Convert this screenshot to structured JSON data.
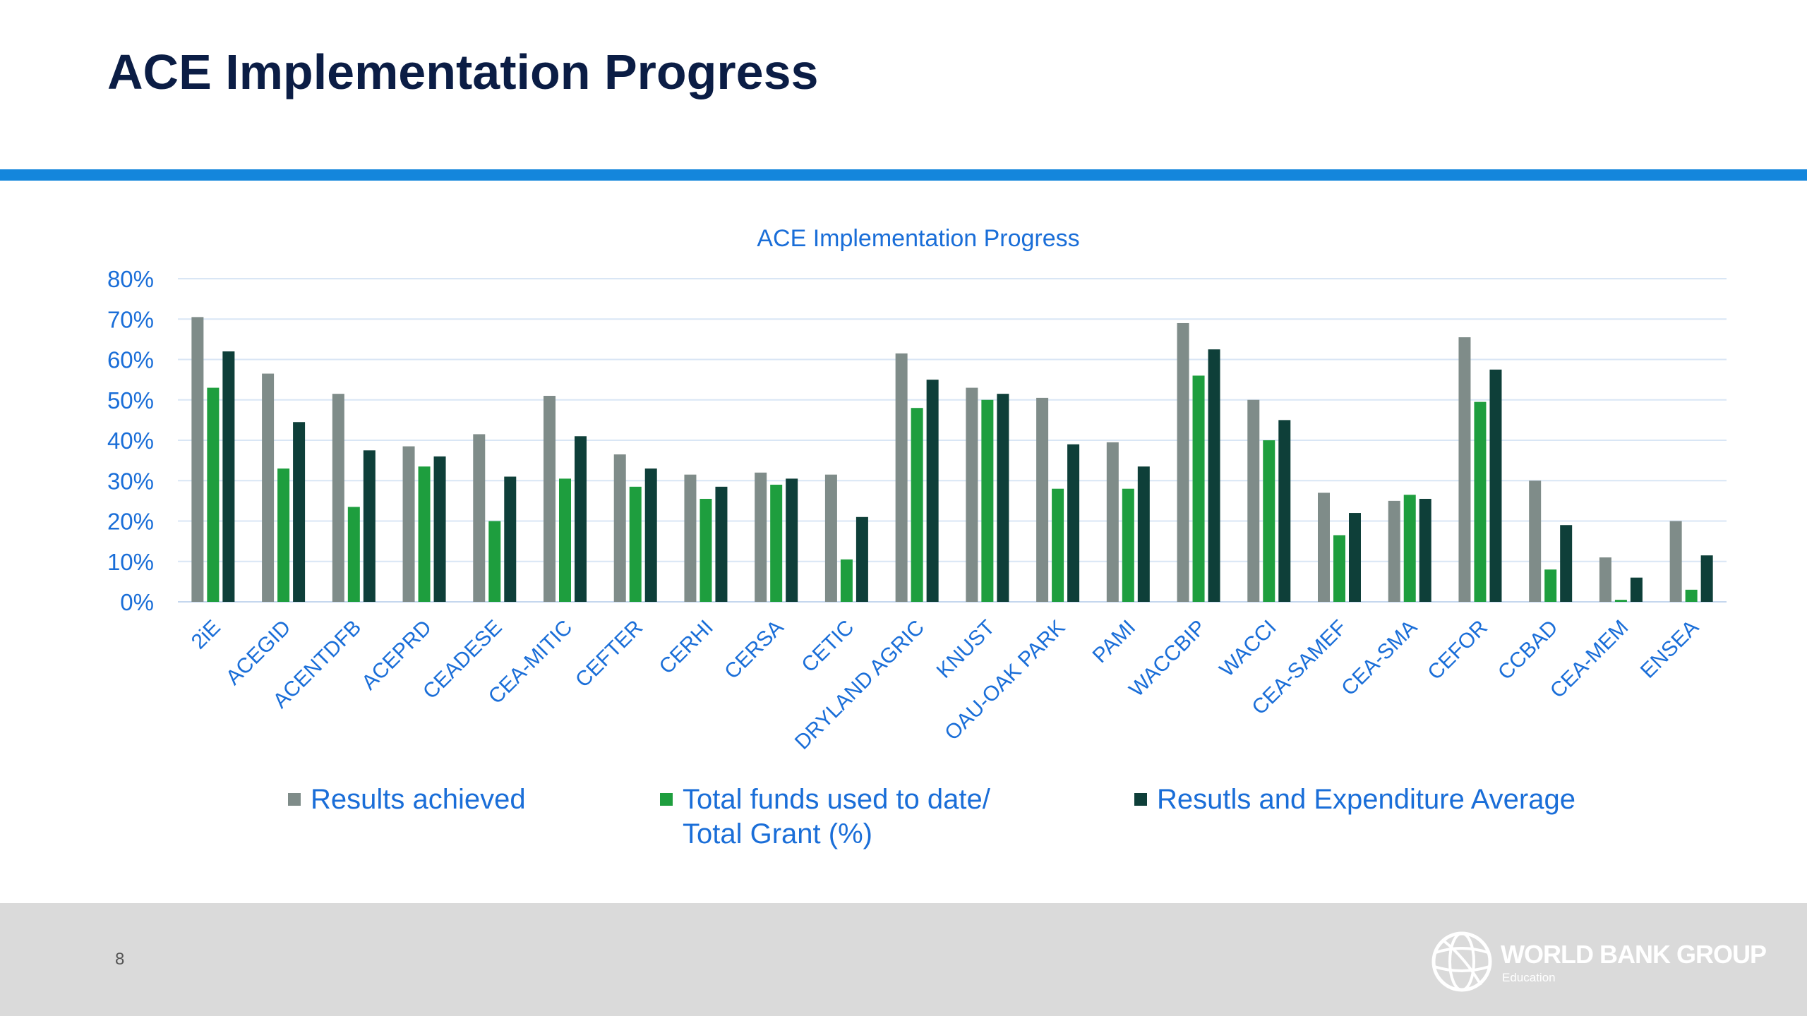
{
  "slide": {
    "title": "ACE Implementation Progress",
    "page_number": "8"
  },
  "logo": {
    "name": "WORLD BANK GROUP",
    "subtitle": "Education"
  },
  "colors": {
    "title": "#0b1d45",
    "accent_bar": "#1486dc",
    "chart_text": "#1a6ed8",
    "gridline": "#d9e6f5",
    "footer": "#dadada"
  },
  "chart_data": {
    "type": "bar",
    "title": "ACE Implementation Progress",
    "xlabel": "",
    "ylabel": "",
    "ylim": [
      0,
      0.8
    ],
    "yticks": [
      "0%",
      "10%",
      "20%",
      "30%",
      "40%",
      "50%",
      "60%",
      "70%",
      "80%"
    ],
    "grid": true,
    "legend_position": "bottom",
    "categories": [
      "2iE",
      "ACEGID",
      "ACENTDFB",
      "ACEPRD",
      "CEADESE",
      "CEA-MITIC",
      "CEFTER",
      "CERHI",
      "CERSA",
      "CETIC",
      "DRYLAND AGRIC",
      "KNUST",
      "OAU-OAK PARK",
      "PAMI",
      "WACCBIP",
      "WACCI",
      "CEA-SAMEF",
      "CEA-SMA",
      "CEFOR",
      "CCBAD",
      "CEA-MEM",
      "ENSEA"
    ],
    "series": [
      {
        "name": "Results achieved",
        "color": "#7f8c89",
        "values": [
          0.705,
          0.565,
          0.515,
          0.385,
          0.415,
          0.51,
          0.365,
          0.315,
          0.32,
          0.315,
          0.615,
          0.53,
          0.505,
          0.395,
          0.69,
          0.5,
          0.27,
          0.25,
          0.655,
          0.3,
          0.11,
          0.2
        ]
      },
      {
        "name": "Total funds used to date/ Total Grant (%)",
        "color": "#1e9e3e",
        "values": [
          0.53,
          0.33,
          0.235,
          0.335,
          0.2,
          0.305,
          0.285,
          0.255,
          0.29,
          0.105,
          0.48,
          0.5,
          0.28,
          0.28,
          0.56,
          0.4,
          0.165,
          0.265,
          0.495,
          0.08,
          0.005,
          0.03
        ]
      },
      {
        "name": "Resutls and Expenditure Average",
        "color": "#0e3f39",
        "values": [
          0.62,
          0.445,
          0.375,
          0.36,
          0.31,
          0.41,
          0.33,
          0.285,
          0.305,
          0.21,
          0.55,
          0.515,
          0.39,
          0.335,
          0.625,
          0.45,
          0.22,
          0.255,
          0.575,
          0.19,
          0.06,
          0.115
        ]
      }
    ],
    "legend": [
      {
        "lines": [
          "Results achieved"
        ]
      },
      {
        "lines": [
          "Total funds used to date/",
          "Total Grant (%)"
        ]
      },
      {
        "lines": [
          "Resutls and Expenditure Average"
        ]
      }
    ]
  }
}
